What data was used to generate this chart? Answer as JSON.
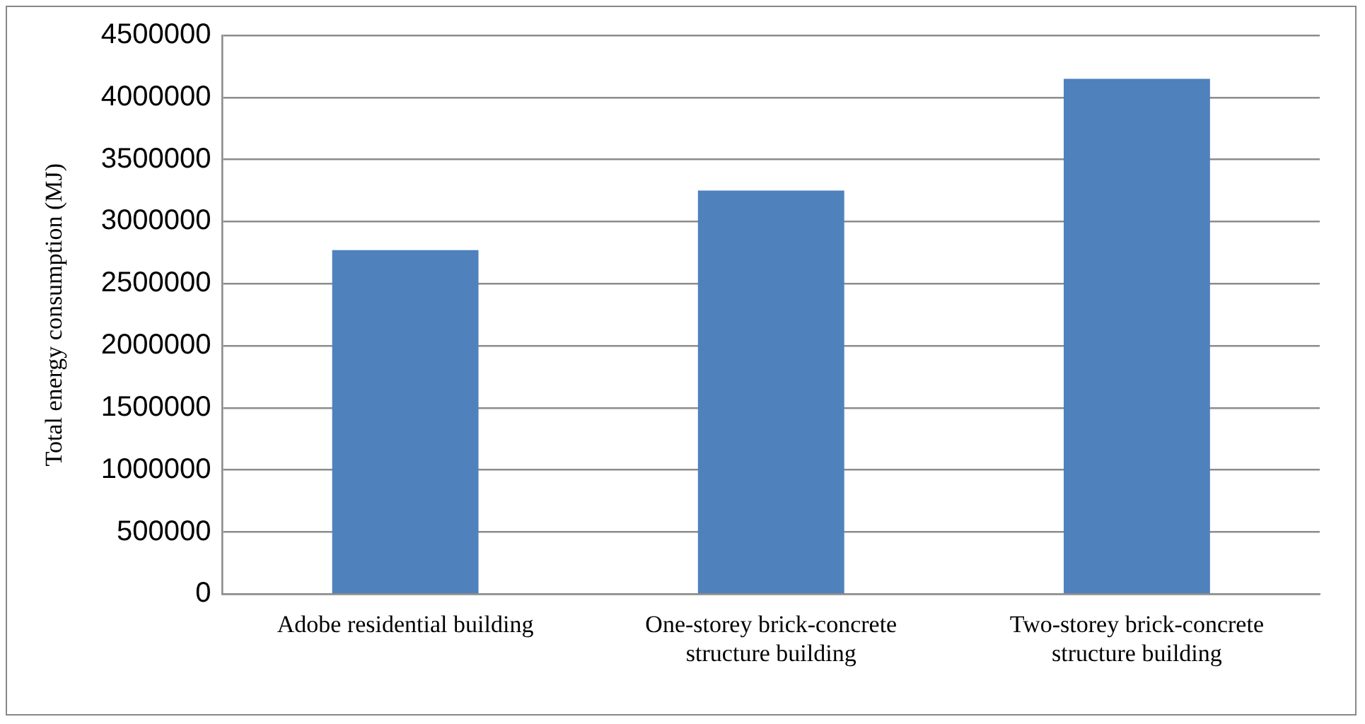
{
  "chart_data": {
    "type": "bar",
    "ylabel": "Total energy consumption (MJ)",
    "categories": [
      "Adobe residential building",
      "One-storey brick-concrete structure building",
      "Two-storey brick-concrete structure building"
    ],
    "values": [
      2770000,
      3250000,
      4150000
    ],
    "color": "#4f81bd",
    "ylim": [
      0,
      4500000
    ],
    "yticks": [
      0,
      500000,
      1000000,
      1500000,
      2000000,
      2500000,
      3000000,
      3500000,
      4000000,
      4500000
    ],
    "grid": "y"
  }
}
